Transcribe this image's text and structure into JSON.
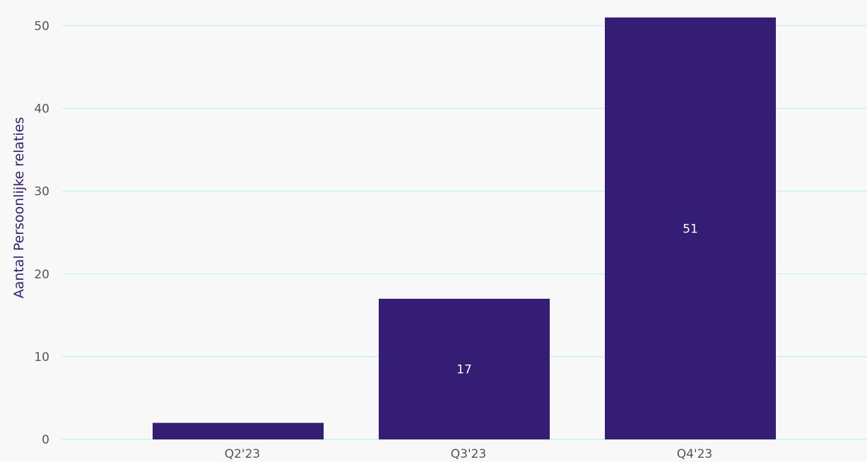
{
  "chart_data": {
    "type": "bar",
    "categories": [
      "Q2'23",
      "Q3'23",
      "Q4'23"
    ],
    "values": [
      2,
      17,
      51
    ],
    "data_labels": [
      "",
      "17",
      "51"
    ],
    "title": "",
    "xlabel": "",
    "ylabel": "Aantal Persoonlijke relaties",
    "ylim": [
      0,
      52
    ],
    "yticks": [
      0,
      10,
      20,
      30,
      40,
      50
    ],
    "grid": true,
    "legend": "none",
    "colors": {
      "bar": "#351c75",
      "grid": "#c6f1f6",
      "background": "#f8f8f8",
      "axis_title": "#351c75",
      "tick_text": "#555555"
    }
  }
}
